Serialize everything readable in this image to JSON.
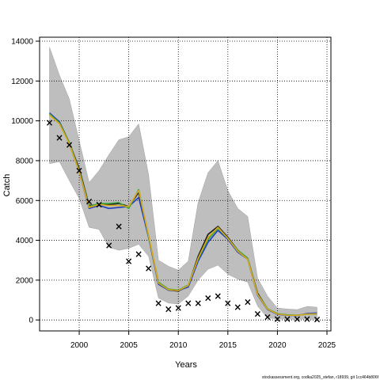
{
  "chart_data": {
    "type": "line",
    "xlabel": "Years",
    "ylabel": "Catch",
    "xlim": [
      1996,
      2025.4
    ],
    "ylim": [
      -550,
      14200
    ],
    "x_ticks": [
      2000,
      2005,
      2010,
      2015,
      2020,
      2025
    ],
    "y_ticks": [
      0,
      2000,
      4000,
      6000,
      8000,
      10000,
      12000,
      14000
    ],
    "grid": true,
    "footer": "stockassessment.org, codka2025_stefan, r18939, git 1cc464b806f",
    "band": {
      "x": [
        1997,
        1998,
        1999,
        2000,
        2001,
        2002,
        2003,
        2004,
        2005,
        2006,
        2007,
        2008,
        2009,
        2010,
        2011,
        2012,
        2013,
        2014,
        2015,
        2016,
        2017,
        2018,
        2019,
        2020,
        2021,
        2022,
        2023,
        2024
      ],
      "upper": [
        13700,
        12300,
        11100,
        9000,
        6900,
        7500,
        8300,
        9050,
        9200,
        9850,
        7300,
        3000,
        2700,
        2500,
        2950,
        5900,
        7400,
        8000,
        6500,
        5600,
        5200,
        2100,
        1200,
        600,
        550,
        520,
        680,
        640
      ],
      "lower": [
        7850,
        7950,
        7000,
        6100,
        4650,
        4550,
        3650,
        3500,
        3600,
        3800,
        3200,
        1100,
        850,
        800,
        1200,
        2000,
        2550,
        2750,
        2300,
        2050,
        1900,
        700,
        100,
        50,
        40,
        40,
        40,
        40
      ]
    },
    "series": [
      {
        "color": "#1a1a1a",
        "values": [
          10300,
          9950,
          8900,
          7600,
          5750,
          5800,
          5800,
          5850,
          5700,
          6400,
          4200,
          1800,
          1500,
          1450,
          1700,
          3200,
          4300,
          4700,
          4150,
          3500,
          3100,
          1350,
          550,
          300,
          250,
          230,
          300,
          310
        ]
      },
      {
        "color": "#1f3fbf",
        "values": [
          10400,
          9950,
          8850,
          7450,
          5600,
          5750,
          5600,
          5650,
          5700,
          6150,
          4150,
          1800,
          1500,
          1480,
          1650,
          2950,
          3900,
          4500,
          4050,
          3400,
          3050,
          1250,
          520,
          280,
          230,
          220,
          330,
          350
        ]
      },
      {
        "color": "#3aa53a",
        "values": [
          10350,
          9900,
          8900,
          7500,
          5700,
          5850,
          5850,
          5900,
          5600,
          6550,
          4200,
          1900,
          1550,
          1500,
          1750,
          3050,
          4050,
          4600,
          4100,
          3500,
          3100,
          1300,
          560,
          320,
          260,
          240,
          290,
          300
        ]
      },
      {
        "color": "#d9a91a",
        "values": [
          10300,
          9850,
          8850,
          7450,
          5650,
          5800,
          5750,
          5750,
          5700,
          6500,
          4250,
          1850,
          1520,
          1480,
          1720,
          3100,
          4150,
          4650,
          4100,
          3450,
          3050,
          1280,
          540,
          300,
          240,
          230,
          300,
          310
        ]
      }
    ],
    "observed": {
      "marker": "×",
      "x": [
        1997,
        1998,
        1999,
        2000,
        2001,
        2002,
        2003,
        2004,
        2005,
        2006,
        2007,
        2008,
        2009,
        2010,
        2011,
        2012,
        2013,
        2014,
        2015,
        2016,
        2017,
        2018,
        2019,
        2020,
        2021,
        2022,
        2023,
        2024
      ],
      "y": [
        9900,
        9150,
        8800,
        7500,
        5950,
        5800,
        3750,
        4700,
        2950,
        3300,
        2600,
        850,
        550,
        600,
        850,
        850,
        1100,
        1200,
        850,
        650,
        900,
        300,
        150,
        50,
        50,
        50,
        50,
        30
      ]
    }
  }
}
